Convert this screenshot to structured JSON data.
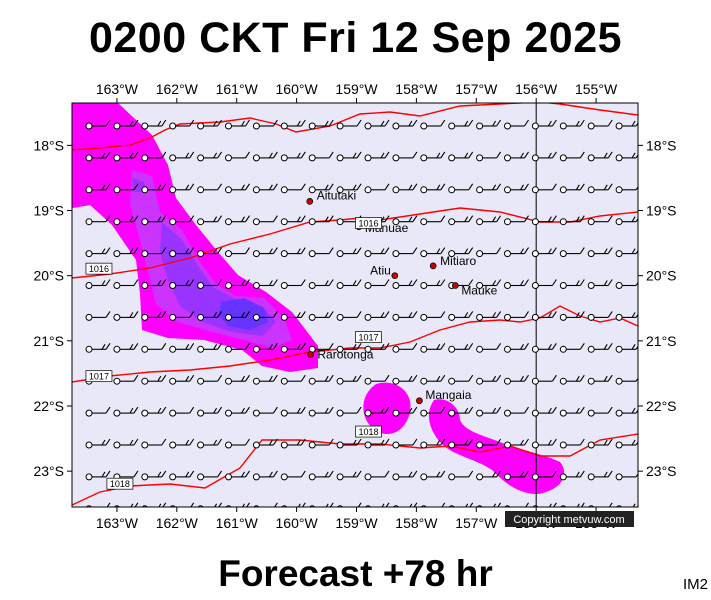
{
  "title": "0200 CKT Fri 12 Sep 2025",
  "footer": "Forecast +78 hr",
  "model_code": "IM2",
  "copyright": "Copyright metvuw.com",
  "colors": {
    "ocean": "#e8e8f8",
    "isobar": "#ff0000",
    "rain_light": "#ff00ff",
    "rain_medium": "#cc33ff",
    "rain_heavy": "#9933ff",
    "rain_core": "#6633ff",
    "place_dot": "#cc0000",
    "wind_barb": "#000000"
  },
  "map": {
    "lon_range": [
      -163.75,
      -154.3
    ],
    "lat_range": [
      -23.55,
      -17.35
    ],
    "lon_ticks_top": [
      "163°W",
      "162°W",
      "161°W",
      "160°W",
      "159°W",
      "158°W",
      "157°W",
      "156°W",
      "155°W"
    ],
    "lon_ticks_bottom": [
      "163°W",
      "162°W",
      "161°W",
      "160°W",
      "159°W",
      "158°W",
      "157°W",
      "156°W",
      "155°W"
    ],
    "lat_ticks_left": [
      "18°S",
      "19°S",
      "20°S",
      "21°S",
      "22°S",
      "23°S"
    ],
    "lat_ticks_right": [
      "18°S",
      "19°S",
      "20°S",
      "21°S",
      "22°S",
      "23°S"
    ],
    "meridian_line_lon": -156
  },
  "places": [
    {
      "name": "Aitutaki",
      "lon": -159.78,
      "lat": -18.86
    },
    {
      "name": "Manuae",
      "lon": -158.96,
      "lat": -19.25
    },
    {
      "name": "Mitiaro",
      "lon": -157.72,
      "lat": -19.85
    },
    {
      "name": "Atiu",
      "lon": -158.36,
      "lat": -20.0
    },
    {
      "name": "Mauke",
      "lon": -157.35,
      "lat": -20.15
    },
    {
      "name": "Rarotonga",
      "lon": -159.77,
      "lat": -21.21
    },
    {
      "name": "Mangaia",
      "lon": -157.95,
      "lat": -21.92
    }
  ],
  "isobars": [
    {
      "value": "1016",
      "label_lon": -163.3,
      "label_lat": -19.9
    },
    {
      "value": "1016",
      "label_lon": -158.8,
      "label_lat": -19.2
    },
    {
      "value": "1017",
      "label_lon": -163.3,
      "label_lat": -21.55
    },
    {
      "value": "1017",
      "label_lon": -158.8,
      "label_lat": -20.95
    },
    {
      "value": "1018",
      "label_lon": -162.95,
      "label_lat": -23.2
    },
    {
      "value": "1018",
      "label_lon": -158.8,
      "label_lat": -22.4
    }
  ]
}
